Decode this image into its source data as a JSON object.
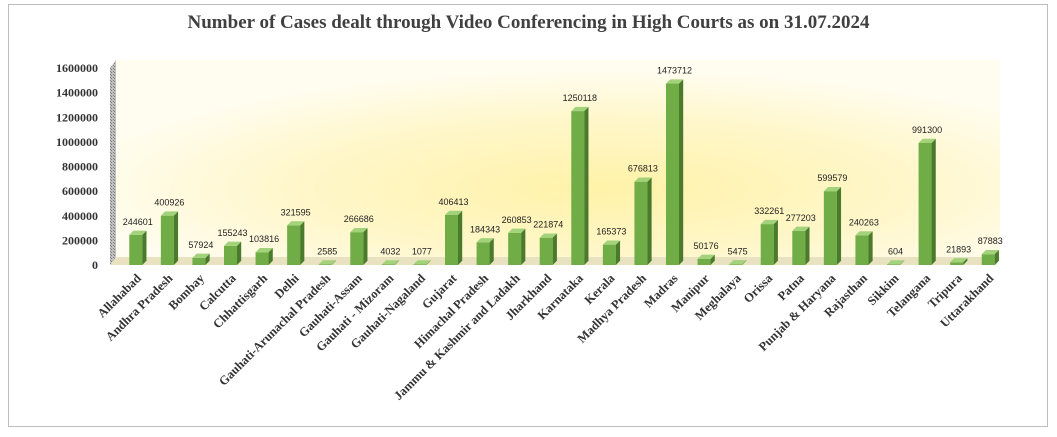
{
  "chart_data": {
    "type": "bar",
    "title": "Number of Cases dealt through Video Conferencing in High Courts as on 31.07.2024",
    "xlabel": "",
    "ylabel": "",
    "ylim": [
      0,
      1600000
    ],
    "yticks": [
      0,
      200000,
      400000,
      600000,
      800000,
      1000000,
      1200000,
      1400000,
      1600000
    ],
    "grid": false,
    "legend": "none",
    "colors": {
      "bar_front": "#70ad47",
      "bar_side": "#4a7a2c",
      "bar_top": "#a2d37a"
    },
    "categories": [
      "Allahabad",
      "Andhra Pradesh",
      "Bombay",
      "Calcutta",
      "Chhattisgarh",
      "Delhi",
      "Gauhati-Arunachal Pradesh",
      "Gauhati-Assam",
      "Gauhati - Mizoram",
      "Gauhati-Nagaland",
      "Gujarat",
      "Himachal Pradesh",
      "Jammu & Kashmir and Ladakh",
      "Jharkhand",
      "Karnataka",
      "Kerala",
      "Madhya Pradesh",
      "Madras",
      "Manipur",
      "Meghalaya",
      "Orissa",
      "Patna",
      "Punjab & Haryana",
      "Rajasthan",
      "Sikkim",
      "Telangana",
      "Tripura",
      "Uttarakhand"
    ],
    "values": [
      244601,
      400926,
      57924,
      155243,
      103816,
      321595,
      2585,
      266686,
      4032,
      1077,
      406413,
      184343,
      260853,
      221874,
      1250118,
      165373,
      676813,
      1473712,
      50176,
      5475,
      332261,
      277203,
      599579,
      240263,
      604,
      991300,
      21893,
      87883
    ]
  }
}
